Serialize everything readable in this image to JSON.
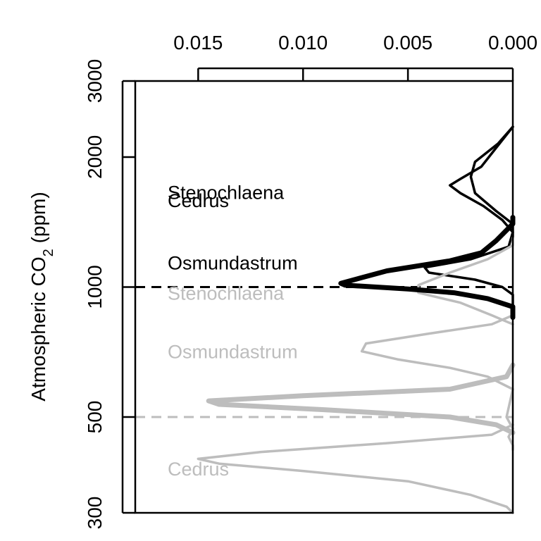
{
  "chart_data": {
    "type": "line",
    "orientation": "density curves drawn horizontally; density axis on top, reversed",
    "ylabel": {
      "prefix": "Atmospheric CO",
      "subscript": "2",
      "suffix": " (ppm)"
    },
    "x_axis": {
      "position": "top",
      "reversed": true,
      "xlim": [
        0.018,
        0.0
      ],
      "ticks": [
        0.015,
        0.01,
        0.005,
        0.0
      ],
      "tick_labels": [
        "0.015",
        "0.010",
        "0.005",
        "0.000"
      ]
    },
    "y_axis": {
      "scale": "log",
      "ylim": [
        300,
        3000
      ],
      "ticks": [
        300,
        500,
        1000,
        2000,
        3000
      ],
      "tick_labels": [
        "300",
        "500",
        "1000",
        "2000",
        "3000"
      ]
    },
    "colors": {
      "modern": "#000000",
      "ancient": "#bdbdbd"
    },
    "reference_lines": [
      {
        "y": 1000,
        "color": "#000000",
        "style": "dashed"
      },
      {
        "y": 500,
        "color": "#bdbdbd",
        "style": "dashed"
      }
    ],
    "series": [
      {
        "name": "Stenochlaena",
        "group": "modern",
        "color": "#000000",
        "weight": "thin",
        "label_y": 1660,
        "points": [
          [
            0.0,
            2350
          ],
          [
            0.0008,
            2100
          ],
          [
            0.0015,
            1900
          ],
          [
            0.0025,
            1780
          ],
          [
            0.003,
            1720
          ],
          [
            0.0025,
            1650
          ],
          [
            0.0014,
            1540
          ],
          [
            0.0005,
            1430
          ],
          [
            0.0,
            1340
          ],
          [
            0.0002,
            1240
          ],
          [
            0.002,
            1160
          ],
          [
            0.0042,
            1110
          ],
          [
            0.004,
            1080
          ],
          [
            0.0018,
            1040
          ],
          [
            0.0005,
            1000
          ],
          [
            0.0,
            960
          ],
          [
            0.0,
            900
          ]
        ]
      },
      {
        "name": "Cedrus",
        "group": "modern",
        "color": "#000000",
        "weight": "thin",
        "label_y": 1590,
        "points": [
          [
            0.0,
            2350
          ],
          [
            0.0007,
            2150
          ],
          [
            0.0018,
            1950
          ],
          [
            0.002,
            1800
          ],
          [
            0.0018,
            1650
          ],
          [
            0.0008,
            1500
          ],
          [
            0.0,
            1400
          ],
          [
            0.0,
            1300
          ]
        ]
      },
      {
        "name": "Osmundastrum",
        "group": "modern",
        "color": "#000000",
        "weight": "thick",
        "label_y": 1140,
        "points": [
          [
            0.0,
            1450
          ],
          [
            0.0,
            1400
          ],
          [
            0.0008,
            1280
          ],
          [
            0.0015,
            1200
          ],
          [
            0.003,
            1150
          ],
          [
            0.006,
            1090
          ],
          [
            0.0082,
            1020
          ],
          [
            0.008,
            1010
          ],
          [
            0.005,
            990
          ],
          [
            0.0028,
            970
          ],
          [
            0.0012,
            940
          ],
          [
            0.0,
            900
          ],
          [
            0.0,
            850
          ]
        ]
      },
      {
        "name": "Stenochlaena",
        "group": "ancient",
        "color": "#bdbdbd",
        "weight": "thin",
        "label_y": 970,
        "points": [
          [
            0.0,
            1300
          ],
          [
            0.0,
            1250
          ],
          [
            0.0012,
            1160
          ],
          [
            0.003,
            1080
          ],
          [
            0.0045,
            1010
          ],
          [
            0.0045,
            970
          ],
          [
            0.0025,
            920
          ],
          [
            0.001,
            860
          ],
          [
            0.0,
            820
          ]
        ]
      },
      {
        "name": "Osmundastrum",
        "group": "ancient",
        "color": "#bdbdbd",
        "weight": "thin",
        "label_y": 710,
        "points": [
          [
            0.0,
            860
          ],
          [
            0.001,
            820
          ],
          [
            0.004,
            780
          ],
          [
            0.007,
            740
          ],
          [
            0.0072,
            710
          ],
          [
            0.0055,
            680
          ],
          [
            0.003,
            650
          ],
          [
            0.0012,
            620
          ],
          [
            0.0,
            580
          ],
          [
            0.0003,
            500
          ],
          [
            0.0,
            470
          ],
          [
            0.0002,
            450
          ],
          [
            0.0,
            430
          ],
          [
            0.0,
            420
          ]
        ]
      },
      {
        "name": "Cedrus",
        "group": "ancient",
        "color": "#bdbdbd",
        "weight": "thin",
        "label_y": 380,
        "points": [
          [
            0.0,
            480
          ],
          [
            0.001,
            455
          ],
          [
            0.006,
            435
          ],
          [
            0.012,
            415
          ],
          [
            0.015,
            400
          ],
          [
            0.014,
            390
          ],
          [
            0.01,
            375
          ],
          [
            0.005,
            355
          ],
          [
            0.002,
            330
          ],
          [
            0.0003,
            310
          ],
          [
            0.0,
            300
          ]
        ]
      },
      {
        "name": "Osmundastrum",
        "group": "ancient",
        "color": "#bdbdbd",
        "weight": "thick",
        "label_y": null,
        "points": [
          [
            0.0,
            660
          ],
          [
            0.0003,
            620
          ],
          [
            0.003,
            580
          ],
          [
            0.01,
            560
          ],
          [
            0.0145,
            545
          ],
          [
            0.014,
            535
          ],
          [
            0.009,
            520
          ],
          [
            0.003,
            500
          ],
          [
            0.0008,
            480
          ],
          [
            0.0,
            460
          ]
        ]
      }
    ]
  }
}
